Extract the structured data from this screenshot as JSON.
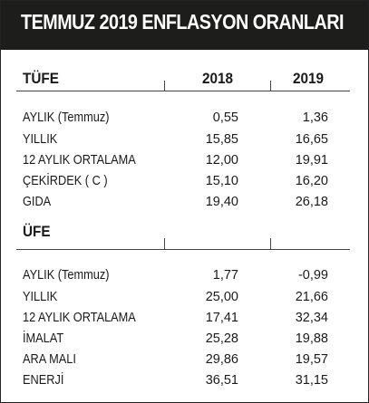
{
  "title": "TEMMUZ 2019 ENFLASYON ORANLARI",
  "columns": {
    "left": "TÜFE",
    "y1": "2018",
    "y2": "2019"
  },
  "tufe_rows": [
    {
      "label": "AYLIK (Temmuz)",
      "v2018": "0,55",
      "v2019": "1,36"
    },
    {
      "label": "YILLIK",
      "v2018": "15,85",
      "v2019": "16,65"
    },
    {
      "label": "12 AYLIK  ORTALAMA",
      "v2018": "12,00",
      "v2019": "19,91"
    },
    {
      "label": "ÇEKİRDEK ( C )",
      "v2018": "15,10",
      "v2019": "16,20"
    },
    {
      "label": "GIDA",
      "v2018": "19,40",
      "v2019": "26,18"
    }
  ],
  "ufe_heading": "ÜFE",
  "ufe_rows": [
    {
      "label": "AYLIK (Temmuz)",
      "v2018": "1,77",
      "v2019": "-0,99"
    },
    {
      "label": "YILLIK",
      "v2018": "25,00",
      "v2019": "21,66"
    },
    {
      "label": "12 AYLIK ORTALAMA",
      "v2018": "17,41",
      "v2019": "32,34"
    },
    {
      "label": "İMALAT",
      "v2018": "25,28",
      "v2019": "19,88"
    },
    {
      "label": "ARA MALI",
      "v2018": "29,86",
      "v2019": "19,57"
    },
    {
      "label": "ENERJİ",
      "v2018": "36,51",
      "v2019": "31,15"
    }
  ]
}
